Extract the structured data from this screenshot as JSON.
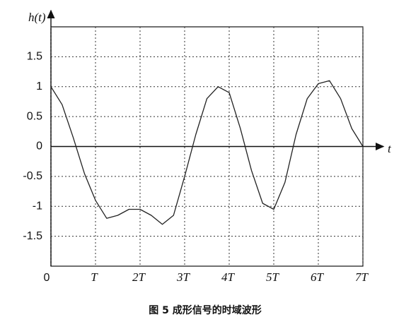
{
  "chart_data": {
    "type": "line",
    "y_label": "h(t)",
    "x_label": "t",
    "caption": "图 5  成形信号的时域波形",
    "x": [
      0,
      0.25,
      0.5,
      0.75,
      1,
      1.25,
      1.5,
      1.75,
      2,
      2.25,
      2.5,
      2.75,
      3,
      3.25,
      3.5,
      3.75,
      4,
      4.25,
      4.5,
      4.75,
      5,
      5.25,
      5.5,
      5.75,
      6,
      6.25,
      6.5,
      6.75,
      7
    ],
    "values": [
      1.0,
      0.7,
      0.15,
      -0.45,
      -0.9,
      -1.2,
      -1.15,
      -1.05,
      -1.05,
      -1.15,
      -1.3,
      -1.15,
      -0.5,
      0.2,
      0.8,
      1.0,
      0.9,
      0.3,
      -0.4,
      -0.95,
      -1.05,
      -0.6,
      0.2,
      0.8,
      1.05,
      1.1,
      0.8,
      0.3,
      0.0
    ],
    "color": "#222222",
    "xlim": [
      0,
      7
    ],
    "ylim": [
      -2,
      2
    ],
    "xticks": [
      0,
      {
        "value": 1,
        "label": "T"
      },
      {
        "value": 2,
        "label": "2T"
      },
      {
        "value": 3,
        "label": "3T"
      },
      {
        "value": 4,
        "label": "4T"
      },
      {
        "value": 5,
        "label": "5T"
      },
      {
        "value": 6,
        "label": "6T"
      },
      {
        "value": 7,
        "label": "7T"
      }
    ],
    "yticks": [
      -1.5,
      -1,
      -0.5,
      0,
      0.5,
      1,
      1.5
    ],
    "grid": true
  }
}
